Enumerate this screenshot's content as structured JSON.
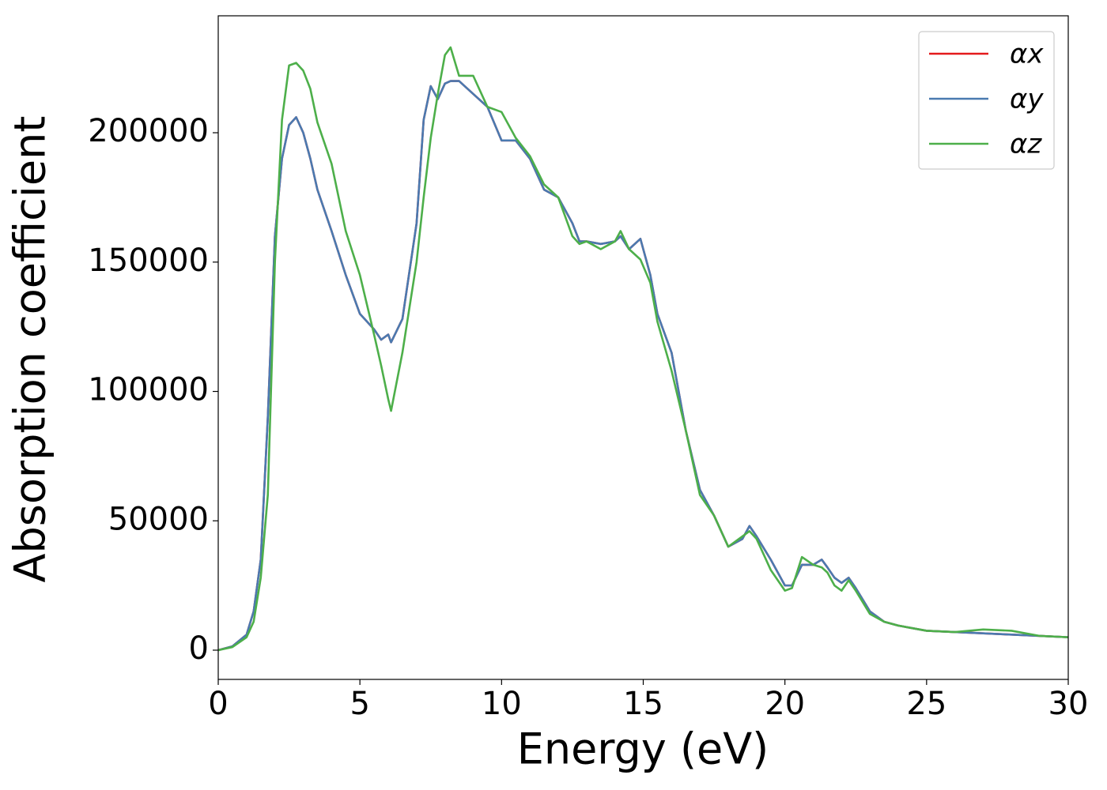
{
  "chart_data": {
    "type": "line",
    "xlabel": "Energy (eV)",
    "ylabel": "Absorption coefficient",
    "x": [
      0,
      0.5,
      1,
      1.25,
      1.5,
      1.75,
      2,
      2.25,
      2.5,
      2.75,
      3,
      3.25,
      3.5,
      4,
      4.5,
      5,
      5.5,
      5.75,
      6,
      6.1,
      6.5,
      7,
      7.25,
      7.5,
      7.75,
      8,
      8.2,
      8.5,
      9,
      9.5,
      10,
      10.5,
      11,
      11.5,
      12,
      12.5,
      12.75,
      13,
      13.5,
      14,
      14.2,
      14.5,
      14.9,
      15.25,
      15.5,
      16,
      16.5,
      17,
      17.5,
      18,
      18.5,
      18.75,
      19,
      19.5,
      20,
      20.25,
      20.6,
      21,
      21.3,
      21.5,
      21.75,
      22,
      22.25,
      22.5,
      23,
      23.5,
      24,
      25,
      26,
      27,
      28,
      29,
      30
    ],
    "series": [
      {
        "name": "αx",
        "color": "#e41a1c",
        "values": [
          0,
          1500,
          6000,
          15000,
          35000,
          90000,
          160000,
          190000,
          203000,
          206000,
          200000,
          190000,
          178000,
          162000,
          145000,
          130000,
          124000,
          120000,
          122000,
          119000,
          128000,
          165000,
          205000,
          218000,
          213000,
          219000,
          220000,
          220000,
          215000,
          210000,
          197000,
          197000,
          190000,
          178000,
          175000,
          165000,
          158000,
          158000,
          157000,
          158000,
          160000,
          155000,
          159000,
          145000,
          130000,
          115000,
          85000,
          62000,
          52000,
          40000,
          43000,
          48000,
          44000,
          35000,
          25000,
          25000,
          33000,
          33000,
          35000,
          32000,
          28000,
          26000,
          28000,
          24000,
          15000,
          11000,
          9500,
          7500,
          7000,
          6500,
          6000,
          5500,
          5000
        ]
      },
      {
        "name": "αy",
        "color": "#4a7ab0",
        "values": [
          0,
          1500,
          6000,
          15000,
          35000,
          90000,
          160000,
          190000,
          203000,
          206000,
          200000,
          190000,
          178000,
          162000,
          145000,
          130000,
          124000,
          120000,
          122000,
          119000,
          128000,
          165000,
          205000,
          218000,
          213000,
          219000,
          220000,
          220000,
          215000,
          210000,
          197000,
          197000,
          190000,
          178000,
          175000,
          165000,
          158000,
          158000,
          157000,
          158000,
          160000,
          155000,
          159000,
          145000,
          130000,
          115000,
          85000,
          62000,
          52000,
          40000,
          43000,
          48000,
          44000,
          35000,
          25000,
          25000,
          33000,
          33000,
          35000,
          32000,
          28000,
          26000,
          28000,
          24000,
          15000,
          11000,
          9500,
          7500,
          7000,
          6500,
          6000,
          5500,
          5000
        ]
      },
      {
        "name": "αz",
        "color": "#4daf4a",
        "values": [
          0,
          1200,
          5000,
          11000,
          28000,
          60000,
          150000,
          205000,
          226000,
          227000,
          224000,
          217000,
          204000,
          188000,
          162000,
          145000,
          122000,
          110000,
          97000,
          92500,
          115000,
          150000,
          175000,
          198000,
          215000,
          230000,
          233000,
          222000,
          222000,
          210000,
          208000,
          198000,
          191000,
          180000,
          175000,
          160000,
          157000,
          158000,
          155000,
          158000,
          162000,
          155000,
          151000,
          142000,
          127000,
          108000,
          85000,
          60000,
          52000,
          40000,
          44000,
          46000,
          43000,
          31000,
          23000,
          24000,
          36000,
          33000,
          32000,
          30000,
          25000,
          23000,
          27000,
          23000,
          14000,
          11000,
          9500,
          7500,
          7000,
          8000,
          7500,
          5500,
          5000
        ]
      }
    ],
    "xlim": [
      0,
      30
    ],
    "xticks": [
      0,
      5,
      10,
      15,
      20,
      25,
      30
    ],
    "ylim": [
      -11300,
      245200
    ],
    "yticks": [
      0,
      50000,
      100000,
      150000,
      200000
    ],
    "legend": "upper right"
  }
}
